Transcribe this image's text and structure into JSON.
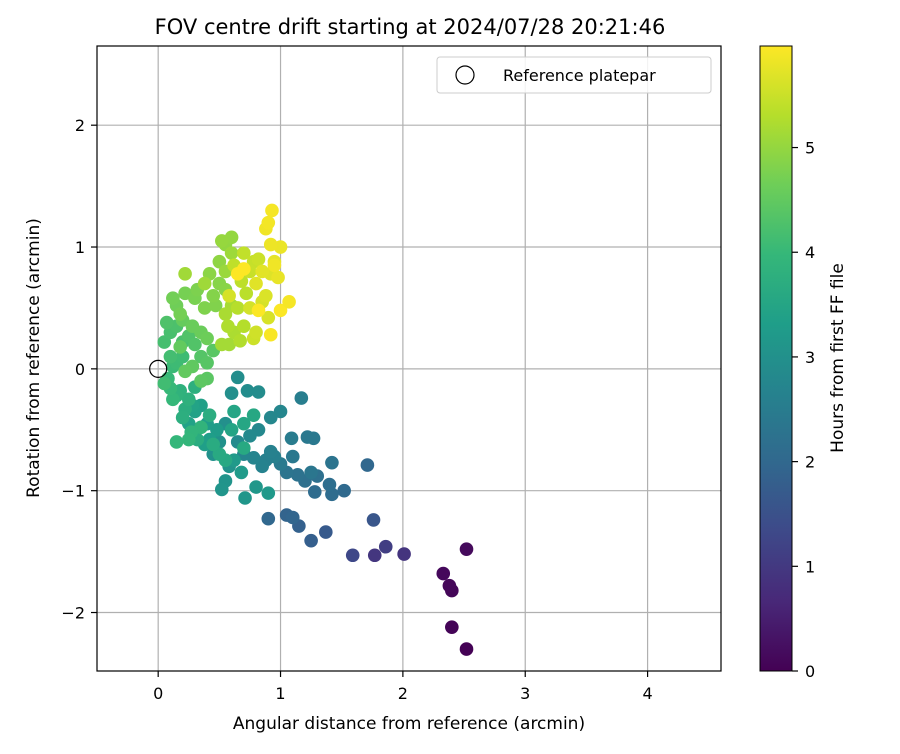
{
  "chart_data": {
    "type": "scatter",
    "title": "FOV centre drift starting at 2024/07/28 20:21:46",
    "xlabel": "Angular distance from reference (arcmin)",
    "ylabel": "Rotation from reference (arcmin)",
    "xlim": [
      -0.5,
      4.6
    ],
    "ylim": [
      -2.48,
      2.65
    ],
    "xticks": [
      0,
      1,
      2,
      3,
      4
    ],
    "xtick_labels": [
      "0",
      "1",
      "2",
      "3",
      "4"
    ],
    "yticks": [
      -2,
      -1,
      0,
      1,
      2
    ],
    "ytick_labels": [
      "−2",
      "−1",
      "0",
      "1",
      "2"
    ],
    "grid": true,
    "legend": {
      "placement": "upper right",
      "entries": [
        "Reference platepar"
      ]
    },
    "reference_point": {
      "x": 0,
      "y": 0,
      "label": "Reference platepar"
    },
    "colorbar": {
      "label": "Hours from first FF file",
      "colormap": "viridis",
      "range": [
        0,
        5.97
      ],
      "ticks": [
        0,
        1,
        2,
        3,
        4,
        5
      ],
      "tick_labels": [
        "0",
        "1",
        "2",
        "3",
        "4",
        "5"
      ],
      "colors": [
        "#440154",
        "#482878",
        "#3e4989",
        "#31688e",
        "#26828e",
        "#1f9e89",
        "#35b779",
        "#6ece58",
        "#b5de2b",
        "#fde725"
      ]
    },
    "series": [
      {
        "points": [
          [
            2.52,
            -2.3,
            0.02
          ],
          [
            2.4,
            -2.12,
            0.05
          ],
          [
            2.4,
            -1.82,
            0.08
          ],
          [
            2.38,
            -1.78,
            0.1
          ],
          [
            2.33,
            -1.68,
            0.12
          ],
          [
            2.52,
            -1.48,
            0.15
          ],
          [
            2.01,
            -1.52,
            0.9
          ],
          [
            1.77,
            -1.53,
            0.95
          ],
          [
            1.86,
            -1.46,
            1.1
          ],
          [
            1.59,
            -1.53,
            1.3
          ],
          [
            1.76,
            -1.24,
            1.6
          ],
          [
            1.37,
            -1.34,
            1.7
          ],
          [
            1.25,
            -1.41,
            1.8
          ],
          [
            1.15,
            -1.29,
            1.85
          ],
          [
            1.05,
            -1.2,
            1.9
          ],
          [
            1.1,
            -1.22,
            1.95
          ],
          [
            0.9,
            -1.23,
            2.0
          ],
          [
            1.71,
            -0.79,
            2.0
          ],
          [
            1.52,
            -1.0,
            2.05
          ],
          [
            1.42,
            -1.03,
            2.1
          ],
          [
            1.28,
            -1.01,
            2.1
          ],
          [
            1.4,
            -0.95,
            2.15
          ],
          [
            1.2,
            -0.92,
            2.2
          ],
          [
            1.3,
            -0.88,
            2.2
          ],
          [
            1.14,
            -0.87,
            2.25
          ],
          [
            1.05,
            -0.85,
            2.3
          ],
          [
            1.42,
            -0.77,
            2.3
          ],
          [
            1.25,
            -0.85,
            2.35
          ],
          [
            1.27,
            -0.57,
            2.4
          ],
          [
            1.22,
            -0.56,
            2.4
          ],
          [
            1.1,
            -0.72,
            2.4
          ],
          [
            1.0,
            -0.78,
            2.45
          ],
          [
            1.09,
            -0.57,
            2.5
          ],
          [
            1.17,
            -0.24,
            2.55
          ],
          [
            0.95,
            -0.72,
            2.6
          ],
          [
            0.88,
            -0.75,
            2.6
          ],
          [
            0.92,
            -0.68,
            2.62
          ],
          [
            0.85,
            -0.8,
            2.65
          ],
          [
            0.78,
            -0.73,
            2.7
          ],
          [
            0.7,
            -0.7,
            2.72
          ],
          [
            1.0,
            -0.35,
            2.75
          ],
          [
            0.92,
            -0.4,
            2.78
          ],
          [
            0.82,
            -0.5,
            2.8
          ],
          [
            0.75,
            -0.55,
            2.82
          ],
          [
            0.65,
            -0.6,
            2.85
          ],
          [
            0.82,
            -0.19,
            2.88
          ],
          [
            0.73,
            -0.18,
            2.9
          ],
          [
            0.65,
            -0.07,
            2.92
          ],
          [
            0.6,
            -0.2,
            2.95
          ],
          [
            0.55,
            -0.45,
            2.98
          ],
          [
            0.5,
            -0.6,
            3.0
          ],
          [
            0.45,
            -0.7,
            3.02
          ],
          [
            0.58,
            -0.8,
            3.05
          ],
          [
            0.55,
            -0.92,
            3.08
          ],
          [
            0.52,
            -0.99,
            3.1
          ],
          [
            0.71,
            -1.06,
            3.12
          ],
          [
            0.8,
            -0.97,
            3.15
          ],
          [
            0.9,
            -1.02,
            3.2
          ],
          [
            0.62,
            -0.75,
            3.22
          ],
          [
            0.68,
            -0.85,
            3.25
          ],
          [
            0.48,
            -0.5,
            3.28
          ],
          [
            0.4,
            -0.45,
            3.3
          ],
          [
            0.42,
            -0.58,
            3.32
          ],
          [
            0.38,
            -0.62,
            3.35
          ],
          [
            0.35,
            -0.3,
            3.38
          ],
          [
            0.3,
            -0.35,
            3.4
          ],
          [
            0.25,
            -0.45,
            3.42
          ],
          [
            0.28,
            -0.3,
            3.45
          ],
          [
            0.6,
            -0.5,
            3.48
          ],
          [
            0.62,
            -0.35,
            3.5
          ],
          [
            0.7,
            -0.45,
            3.52
          ],
          [
            0.78,
            -0.38,
            3.55
          ],
          [
            0.55,
            -0.75,
            3.58
          ],
          [
            0.7,
            -0.65,
            3.6
          ],
          [
            0.5,
            -0.7,
            3.62
          ],
          [
            0.45,
            -0.62,
            3.65
          ],
          [
            0.32,
            -0.58,
            3.68
          ],
          [
            0.42,
            -0.38,
            3.7
          ],
          [
            0.22,
            -0.33,
            3.72
          ],
          [
            0.2,
            -0.4,
            3.75
          ],
          [
            0.3,
            -0.15,
            3.78
          ],
          [
            0.25,
            -0.25,
            3.8
          ],
          [
            0.18,
            -0.18,
            3.82
          ],
          [
            0.15,
            -0.22,
            3.85
          ],
          [
            0.35,
            -0.48,
            3.88
          ],
          [
            0.27,
            -0.52,
            3.9
          ],
          [
            0.25,
            -0.58,
            3.92
          ],
          [
            0.15,
            -0.6,
            3.95
          ],
          [
            0.12,
            -0.25,
            3.98
          ],
          [
            0.1,
            -0.16,
            4.0
          ],
          [
            0.08,
            -0.08,
            4.02
          ],
          [
            0.12,
            0.02,
            4.05
          ],
          [
            0.15,
            0.05,
            4.08
          ],
          [
            0.2,
            0.1,
            4.1
          ],
          [
            0.05,
            -0.12,
            4.12
          ],
          [
            0.1,
            0.1,
            4.15
          ],
          [
            0.05,
            0.22,
            4.18
          ],
          [
            0.1,
            0.3,
            4.2
          ],
          [
            0.2,
            0.22,
            4.22
          ],
          [
            0.15,
            0.35,
            4.25
          ],
          [
            0.07,
            0.38,
            4.28
          ],
          [
            0.25,
            0.27,
            4.3
          ],
          [
            0.3,
            0.2,
            4.32
          ],
          [
            0.35,
            0.1,
            4.35
          ],
          [
            0.4,
            0.05,
            4.38
          ],
          [
            0.45,
            0.15,
            4.4
          ],
          [
            0.4,
            -0.08,
            4.42
          ],
          [
            0.35,
            -0.1,
            4.45
          ],
          [
            0.28,
            0.02,
            4.48
          ],
          [
            0.22,
            -0.02,
            4.5
          ],
          [
            0.18,
            0.18,
            4.52
          ],
          [
            0.2,
            0.4,
            4.55
          ],
          [
            0.28,
            0.35,
            4.58
          ],
          [
            0.35,
            0.3,
            4.6
          ],
          [
            0.4,
            0.25,
            4.62
          ],
          [
            0.15,
            0.52,
            4.65
          ],
          [
            0.12,
            0.58,
            4.68
          ],
          [
            0.18,
            0.45,
            4.7
          ],
          [
            0.22,
            0.62,
            4.72
          ],
          [
            0.3,
            0.58,
            4.75
          ],
          [
            0.32,
            0.65,
            4.78
          ],
          [
            0.38,
            0.5,
            4.8
          ],
          [
            0.47,
            0.52,
            4.82
          ],
          [
            0.45,
            0.6,
            4.85
          ],
          [
            0.5,
            0.7,
            4.88
          ],
          [
            0.55,
            0.65,
            4.9
          ],
          [
            0.42,
            0.78,
            4.92
          ],
          [
            0.5,
            0.88,
            4.95
          ],
          [
            0.55,
            1.02,
            4.98
          ],
          [
            0.6,
            1.08,
            5.0
          ],
          [
            0.52,
            1.05,
            5.02
          ],
          [
            0.55,
            0.8,
            5.05
          ],
          [
            0.6,
            0.95,
            5.08
          ],
          [
            0.38,
            0.7,
            5.1
          ],
          [
            0.22,
            0.78,
            5.12
          ],
          [
            0.52,
            0.2,
            5.15
          ],
          [
            0.58,
            0.2,
            5.15
          ],
          [
            0.6,
            0.52,
            5.18
          ],
          [
            0.55,
            0.45,
            5.2
          ],
          [
            0.62,
            0.3,
            5.22
          ],
          [
            0.57,
            0.35,
            5.25
          ],
          [
            0.67,
            0.23,
            5.28
          ],
          [
            0.7,
            0.35,
            5.3
          ],
          [
            0.65,
            0.5,
            5.32
          ],
          [
            0.72,
            0.62,
            5.35
          ],
          [
            0.68,
            0.72,
            5.38
          ],
          [
            0.62,
            0.85,
            5.4
          ],
          [
            0.7,
            0.95,
            5.42
          ],
          [
            0.78,
            0.88,
            5.45
          ],
          [
            0.75,
            0.8,
            5.48
          ],
          [
            0.82,
            0.9,
            5.5
          ],
          [
            0.78,
            0.25,
            5.52
          ],
          [
            0.8,
            0.3,
            5.55
          ],
          [
            0.75,
            0.5,
            5.58
          ],
          [
            0.85,
            0.55,
            5.6
          ],
          [
            0.9,
            0.42,
            5.62
          ],
          [
            0.88,
            0.6,
            5.65
          ],
          [
            0.92,
            0.78,
            5.68
          ],
          [
            0.8,
            0.7,
            5.7
          ],
          [
            0.85,
            0.8,
            5.72
          ],
          [
            0.95,
            0.88,
            5.75
          ],
          [
            0.98,
            0.75,
            5.78
          ],
          [
            1.0,
            1.0,
            5.8
          ],
          [
            0.92,
            1.02,
            5.82
          ],
          [
            0.88,
            1.15,
            5.85
          ],
          [
            0.9,
            1.2,
            5.88
          ],
          [
            0.93,
            1.3,
            5.9
          ],
          [
            0.92,
            0.28,
            5.92
          ],
          [
            0.82,
            0.48,
            5.95
          ],
          [
            0.65,
            0.78,
            5.97
          ],
          [
            0.7,
            0.82,
            5.97
          ],
          [
            1.0,
            0.48,
            5.95
          ],
          [
            1.07,
            0.55,
            5.9
          ],
          [
            0.58,
            0.6,
            5.6
          ],
          [
            0.95,
            0.85,
            5.85
          ]
        ]
      }
    ]
  }
}
